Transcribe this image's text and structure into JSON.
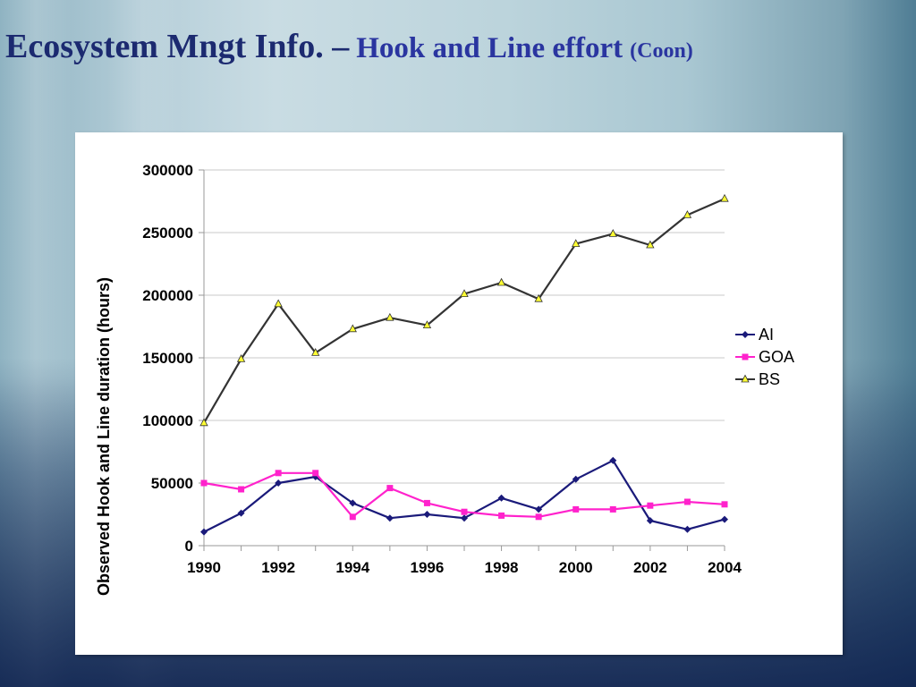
{
  "slide": {
    "title_part1": "Ecosystem Mngt Info. –",
    "title_part2": "Hook and Line effort",
    "title_part3": "(Coon)"
  },
  "chart_data": {
    "type": "line",
    "title": "",
    "xlabel": "",
    "ylabel": "Observed Hook and Line duration (hours)",
    "xlim": [
      1990,
      2004
    ],
    "ylim": [
      0,
      300000
    ],
    "x_ticks": [
      "1990",
      "1992",
      "1994",
      "1996",
      "1998",
      "2000",
      "2002",
      "2004"
    ],
    "y_ticks": [
      "0",
      "50000",
      "100000",
      "150000",
      "200000",
      "250000",
      "300000"
    ],
    "x": [
      1990,
      1991,
      1992,
      1993,
      1994,
      1995,
      1996,
      1997,
      1998,
      1999,
      2000,
      2001,
      2002,
      2003,
      2004
    ],
    "grid": "horizontal",
    "legend_position": "right",
    "series": [
      {
        "name": "AI",
        "color": "#1a1a7a",
        "marker": "diamond",
        "values": [
          11000,
          26000,
          50000,
          55000,
          34000,
          22000,
          25000,
          22000,
          38000,
          29000,
          53000,
          68000,
          20000,
          13000,
          21000
        ]
      },
      {
        "name": "GOA",
        "color": "#ff22cc",
        "marker": "square",
        "values": [
          50000,
          45000,
          58000,
          58000,
          23000,
          46000,
          34000,
          27000,
          24000,
          23000,
          29000,
          29000,
          32000,
          35000,
          33000
        ]
      },
      {
        "name": "BS",
        "color": "#333333",
        "marker": "triangle",
        "marker_fill": "#ffff33",
        "values": [
          98000,
          149000,
          193000,
          154000,
          173000,
          182000,
          176000,
          201000,
          210000,
          197000,
          241000,
          249000,
          240000,
          264000,
          277000
        ]
      }
    ]
  }
}
